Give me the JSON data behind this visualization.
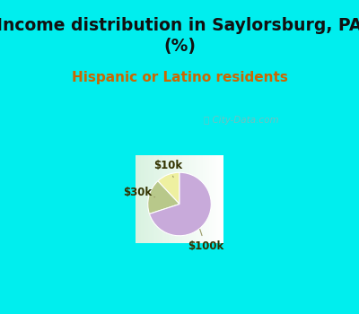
{
  "title": "Income distribution in Saylorsburg, PA\n(%)",
  "subtitle": "Hispanic or Latino residents",
  "slices": [
    {
      "label": "$10k",
      "value": 12,
      "color": "#eef0a0"
    },
    {
      "label": "$30k",
      "value": 18,
      "color": "#b8c88a"
    },
    {
      "label": "$100k",
      "value": 70,
      "color": "#c8aada"
    }
  ],
  "title_fontsize": 13.5,
  "subtitle_fontsize": 11,
  "title_color": "#111111",
  "subtitle_color": "#cc6600",
  "bg_top_color": "#00eeee",
  "watermark": "⌕ City-Data.com",
  "startangle": 90,
  "label_color": "#333300",
  "line_color": "#999966"
}
